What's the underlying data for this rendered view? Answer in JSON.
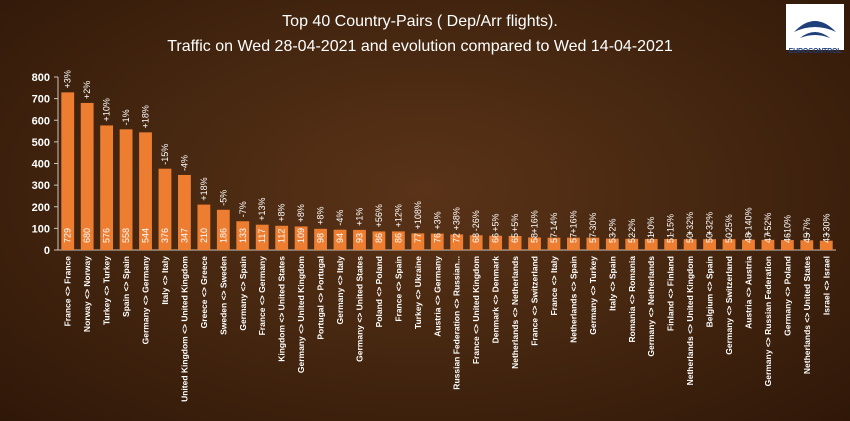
{
  "chart_data": {
    "type": "bar",
    "title": "Top 40 Country-Pairs ( Dep/Arr flights).",
    "subtitle": "Traffic on Wed 28-04-2021 and evolution compared to Wed 14-04-2021",
    "ylim": [
      0,
      800
    ],
    "yticks": [
      "0",
      "100",
      "200",
      "300",
      "400",
      "500",
      "600",
      "700",
      "800"
    ],
    "grid": false,
    "categories": [
      "France <> France",
      "Norway <> Norway",
      "Turkey <> Turkey",
      "Spain <> Spain",
      "Germany <> Germany",
      "Italy <> Italy",
      "United Kingdom <> United Kingdom",
      "Greece <> Greece",
      "Sweden <> Sweden",
      "Germany <> Spain",
      "France <> Germany",
      "Kingdom <> United States",
      "Germany <> United Kingdom",
      "Portugal <> Portugal",
      "Germany <> Italy",
      "Germany <> United States",
      "Poland <> Poland",
      "France <> Spain",
      "Turkey <> Ukraine",
      "Austria <> Germany",
      "Russian Federation <> Russian...",
      "France <> United Kingdom",
      "Denmark <> Denmark",
      "Netherlands <> Netherlands",
      "France <> Switzerland",
      "France <> Italy",
      "Netherlands <> Spain",
      "Germany <> Turkey",
      "Italy <> Spain",
      "Romania <> Romania",
      "Germany <> Netherlands",
      "Finland <> Finland",
      "Netherlands <> United Kingdom",
      "Belgium <> Spain",
      "Germany <> Switzerland",
      "Austria <> Austria",
      "Germany <> Russian Federation",
      "Germany <> Poland",
      "Netherlands <> United States",
      "Israel <> Israel"
    ],
    "values": [
      729,
      680,
      576,
      558,
      544,
      376,
      347,
      210,
      186,
      133,
      117,
      112,
      109,
      98,
      94,
      93,
      86,
      86,
      77,
      76,
      72,
      68,
      66,
      65,
      58,
      57,
      57,
      57,
      53,
      52,
      51,
      51,
      50,
      50,
      50,
      48,
      47,
      46,
      45,
      43
    ],
    "changes": [
      "+3%",
      "+2%",
      "+10%",
      "-1%",
      "+18%",
      "-15%",
      "-4%",
      "+18%",
      "-5%",
      "-7%",
      "+13%",
      "+8%",
      "+8%",
      "+8%",
      "-4%",
      "+1%",
      "+56%",
      "+12%",
      "+108%",
      "+3%",
      "+38%",
      "-26%",
      "+5%",
      "+5%",
      "+16%",
      "-14%",
      "+16%",
      "-30%",
      "-2%",
      "-2%",
      "+0%",
      "-15%",
      "+32%",
      "+32%",
      "-25%",
      "+140%",
      "+52%",
      "-10%",
      "+7%",
      "+30%"
    ],
    "bar_color": "#ed7d31",
    "text_color": "#ffffff"
  },
  "logo": {
    "text": "EUROCONTROL",
    "color": "#1f3f7a"
  }
}
